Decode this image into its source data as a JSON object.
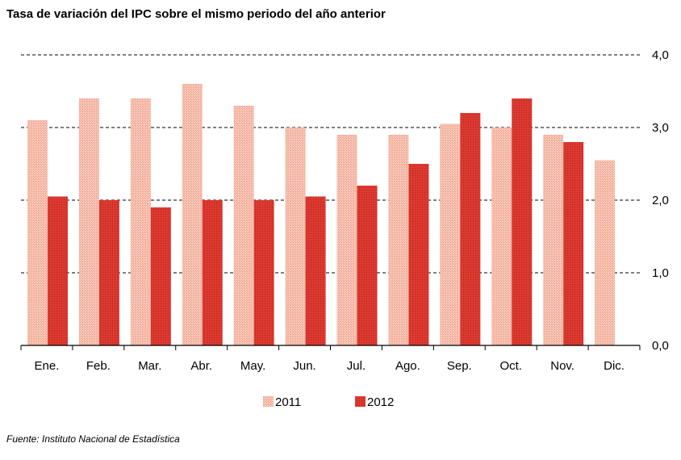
{
  "title": "Tasa de variación del IPC sobre el mismo periodo del año anterior",
  "source": "Fuente: Instituto Nacional de Estadística",
  "colors": {
    "s2011": "#f5b9a7",
    "s2012": "#d9322a"
  },
  "chart_data": {
    "type": "bar",
    "title": "Tasa de variación del IPC sobre el mismo periodo del año anterior",
    "categories": [
      "Ene.",
      "Feb.",
      "Mar.",
      "Abr.",
      "May.",
      "Jun.",
      "Jul.",
      "Ago.",
      "Sep.",
      "Oct.",
      "Nov.",
      "Dic."
    ],
    "series": [
      {
        "name": "2011",
        "values": [
          3.1,
          3.4,
          3.4,
          3.6,
          3.3,
          3.0,
          2.9,
          2.9,
          3.05,
          3.0,
          2.9,
          2.55
        ]
      },
      {
        "name": "2012",
        "values": [
          2.05,
          2.0,
          1.9,
          2.0,
          2.0,
          2.05,
          2.2,
          2.5,
          3.2,
          3.4,
          2.8,
          null
        ]
      }
    ],
    "ylim": [
      0,
      4
    ],
    "yticks": [
      "0,0",
      "1,0",
      "2,0",
      "3,0",
      "4,0"
    ],
    "ytick_values": [
      0,
      1,
      2,
      3,
      4
    ],
    "grid": "dashed horizontal",
    "y_axis_side": "right",
    "legend": "bottom-center"
  }
}
